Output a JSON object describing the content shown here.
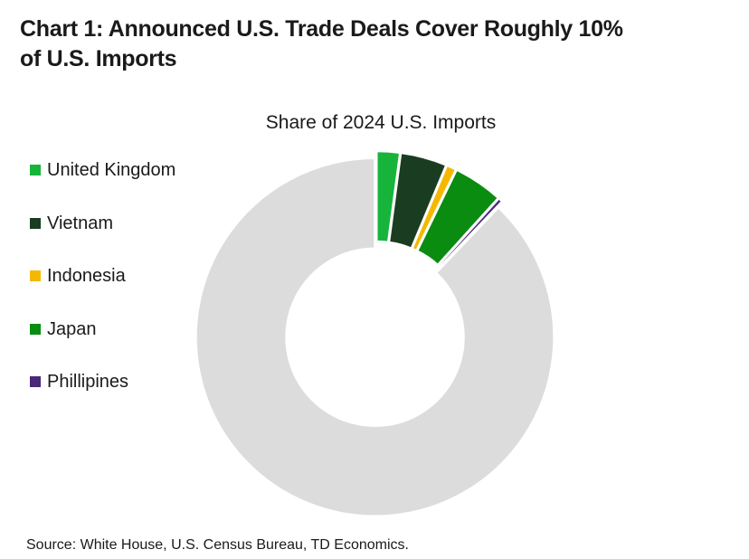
{
  "title": {
    "line1": "Chart 1: Announced U.S. Trade Deals Cover Roughly 10%",
    "line2": "of U.S. Imports"
  },
  "source": "Source: White House, U.S. Census Bureau, TD Economics.",
  "chart_data": {
    "type": "pie",
    "variant": "donut",
    "title": "Share of 2024 U.S. Imports",
    "legend_position": "left",
    "slices": [
      {
        "label": "United Kingdom",
        "value": 2.1,
        "color": "#16b43b"
      },
      {
        "label": "Vietnam",
        "value": 4.2,
        "color": "#1a3d22"
      },
      {
        "label": "Indonesia",
        "value": 0.9,
        "color": "#f5b800"
      },
      {
        "label": "Japan",
        "value": 4.5,
        "color": "#0a8c10"
      },
      {
        "label": "Phillipines",
        "value": 0.4,
        "color": "#4a2878"
      },
      {
        "label": "",
        "value": 87.9,
        "color": "#dcdcdc"
      }
    ]
  }
}
